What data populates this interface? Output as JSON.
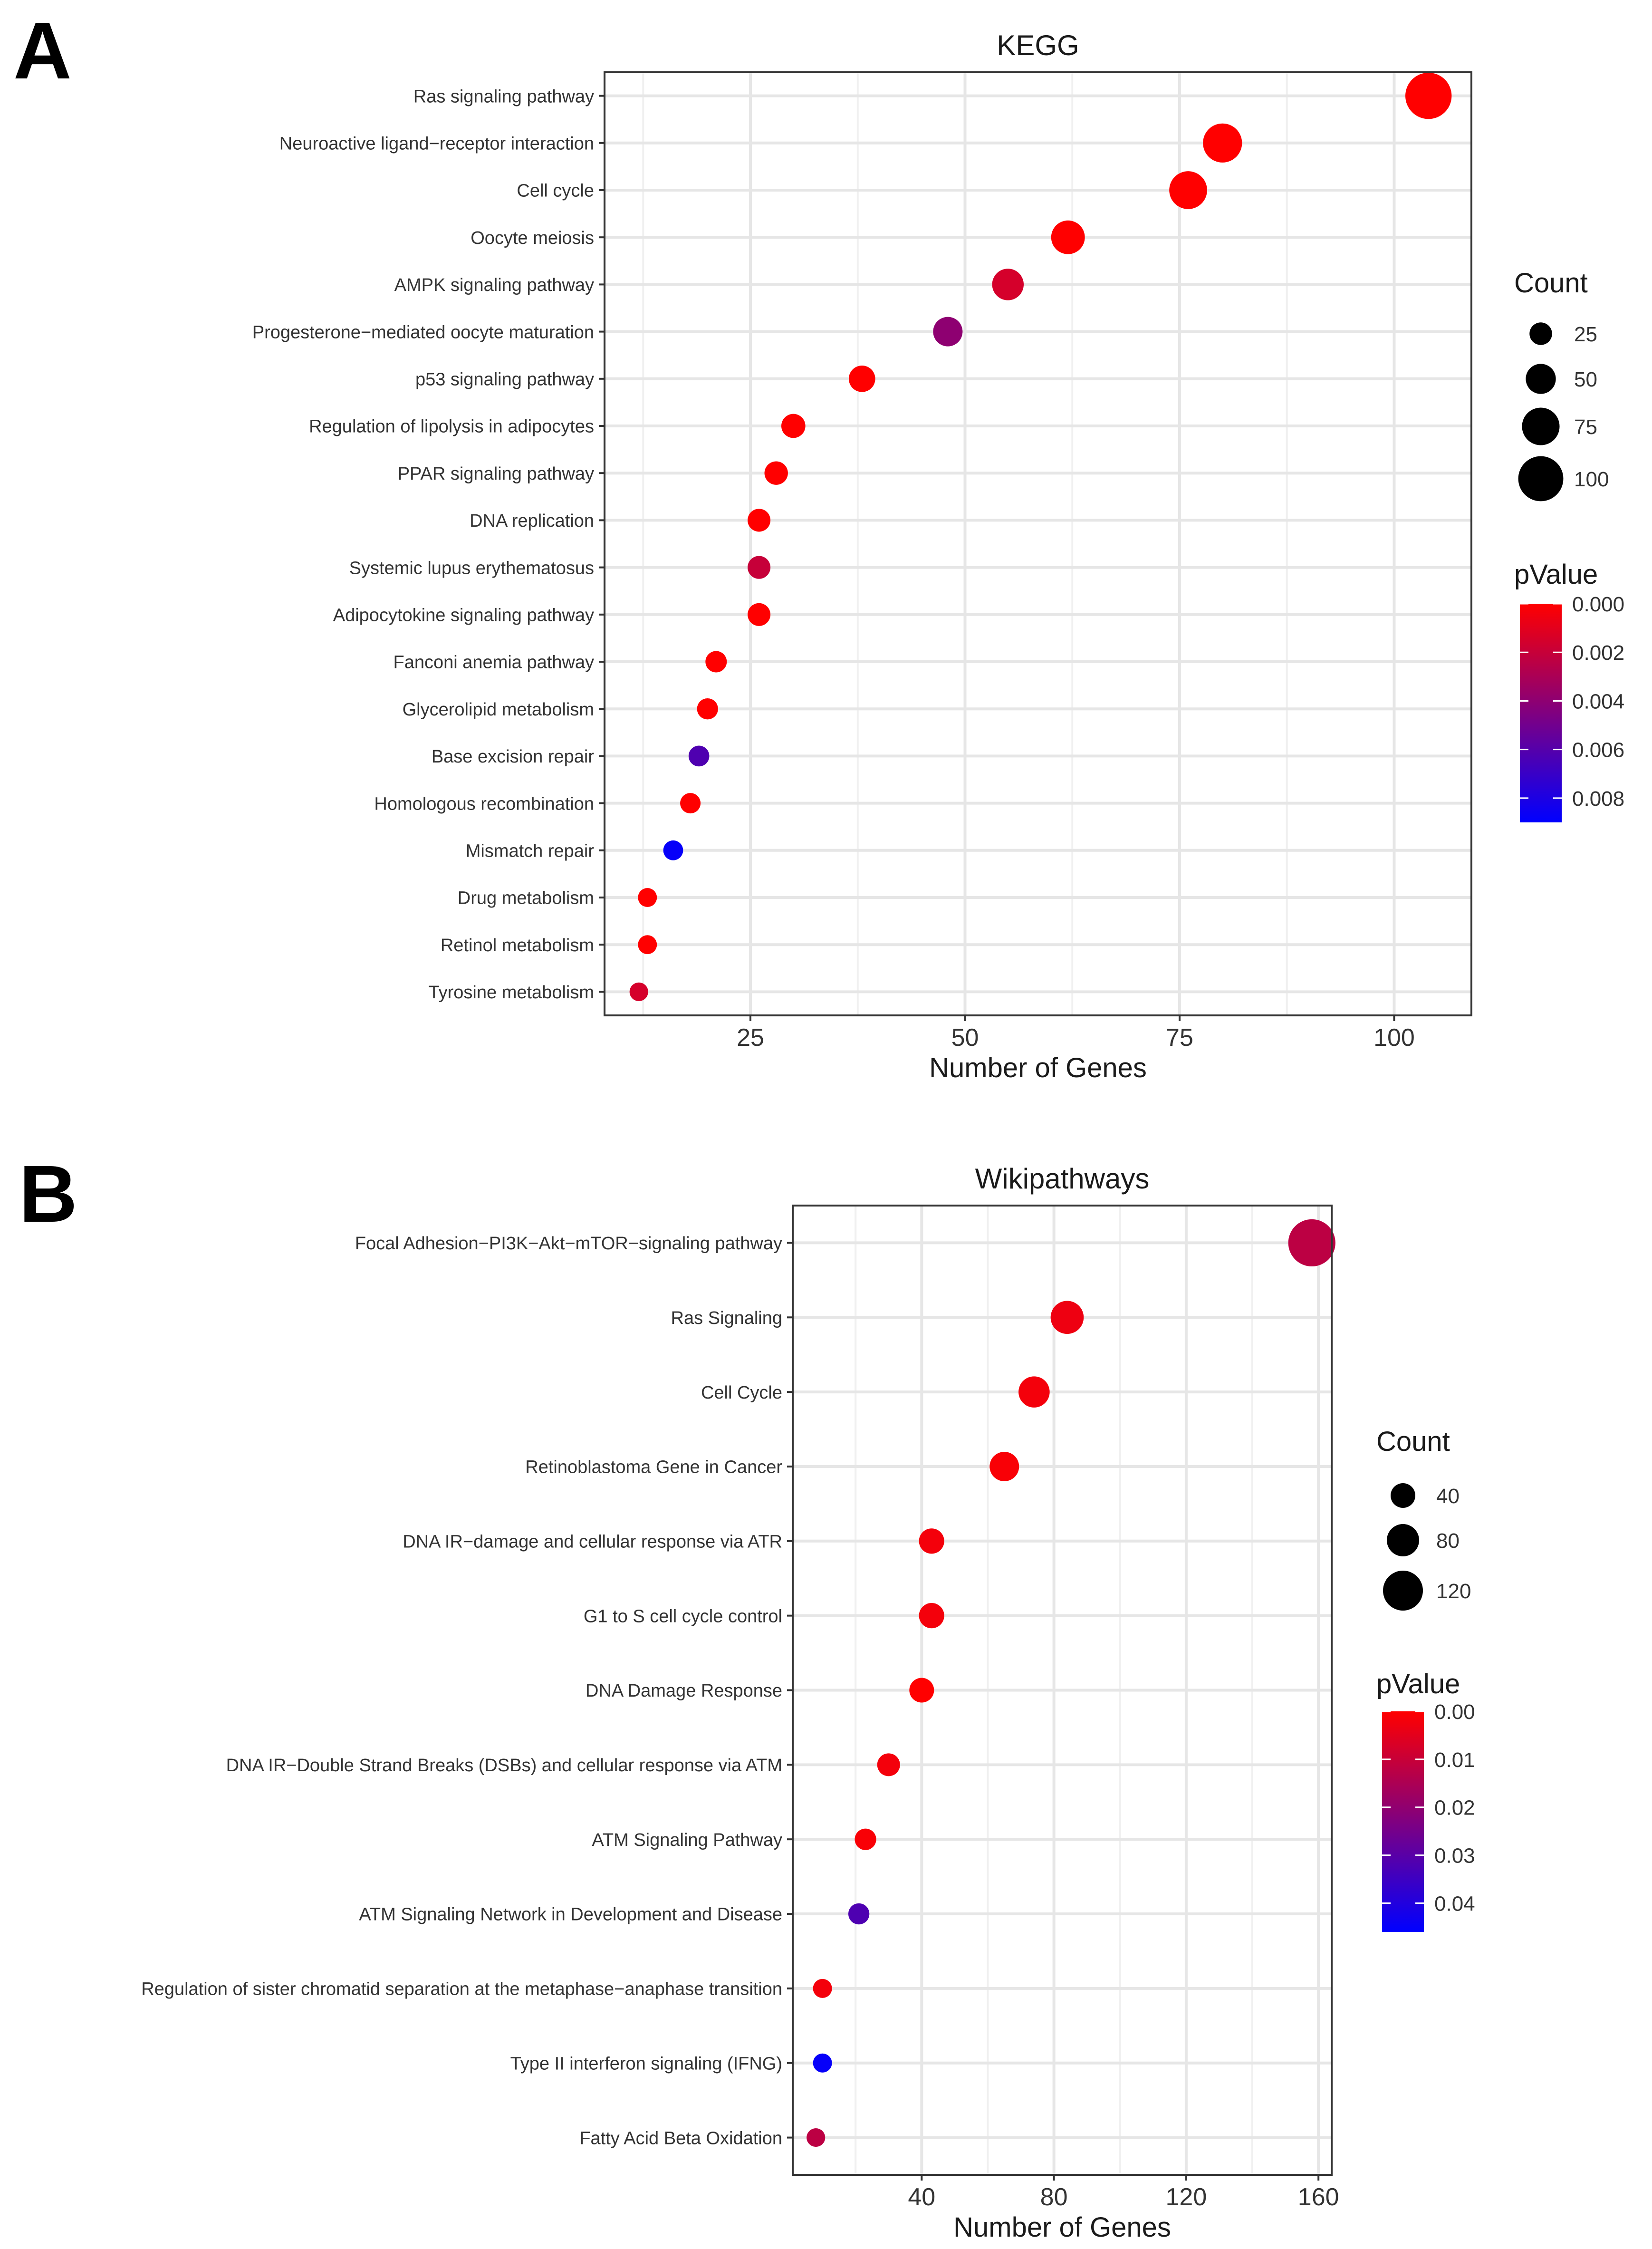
{
  "panels": [
    {
      "label": "A",
      "chart_data": {
        "type": "scatter",
        "title": "KEGG",
        "xlabel": "Number of Genes",
        "ylabel": "",
        "xlim": [
          8,
          109
        ],
        "xticks": [
          25,
          50,
          75,
          100
        ],
        "categories": [
          "Ras signaling pathway",
          "Neuroactive ligand−receptor interaction",
          "Cell cycle",
          "Oocyte meiosis",
          "AMPK signaling pathway",
          "Progesterone−mediated oocyte maturation",
          "p53 signaling pathway",
          "Regulation of lipolysis in adipocytes",
          "PPAR signaling pathway",
          "DNA replication",
          "Systemic lupus erythematosus",
          "Adipocytokine signaling pathway",
          "Fanconi anemia pathway",
          "Glycerolipid metabolism",
          "Base excision repair",
          "Homologous recombination",
          "Mismatch repair",
          "Drug metabolism",
          "Retinol metabolism",
          "Tyrosine metabolism"
        ],
        "counts": [
          104,
          80,
          76,
          62,
          55,
          48,
          38,
          30,
          28,
          26,
          26,
          26,
          21,
          20,
          19,
          18,
          16,
          13,
          13,
          12
        ],
        "pvalues": [
          0.0,
          0.0,
          0.0,
          0.0,
          0.0015,
          0.004,
          0.0,
          0.0,
          0.0,
          0.0,
          0.002,
          0.0,
          0.0,
          0.0,
          0.0062,
          0.0,
          0.0088,
          0.0,
          0.0,
          0.0015
        ],
        "size_legend": {
          "title": "Count",
          "values": [
            25,
            50,
            75,
            100
          ],
          "labels": [
            "25",
            "50",
            "75",
            "100"
          ]
        },
        "color_legend": {
          "title": "pValue",
          "min": 0.0,
          "max": 0.009,
          "ticks": [
            0.0,
            0.002,
            0.004,
            0.006,
            0.008
          ],
          "labels": [
            "0.000",
            "0.002",
            "0.004",
            "0.006",
            "0.008"
          ]
        },
        "colors": {
          "low": "#ff0000",
          "high": "#0000ff"
        },
        "grid": true
      }
    },
    {
      "label": "B",
      "chart_data": {
        "type": "scatter",
        "title": "Wikipathways",
        "xlabel": "Number of Genes",
        "ylabel": "",
        "xlim": [
          1,
          164
        ],
        "xticks": [
          40,
          80,
          120,
          160
        ],
        "categories": [
          "Focal Adhesion−PI3K−Akt−mTOR−signaling pathway",
          "Ras Signaling",
          "Cell Cycle",
          "Retinoblastoma Gene in Cancer",
          "DNA IR−damage and cellular response via ATR",
          "G1 to S cell cycle control",
          "DNA Damage Response",
          "DNA IR−Double Strand Breaks (DSBs) and cellular response via ATM",
          "ATM Signaling Pathway",
          "ATM Signaling Network in Development and Disease",
          "Regulation of sister chromatid separation at the metaphase−anaphase transition",
          "Type II interferon signaling (IFNG)",
          "Fatty Acid Beta Oxidation"
        ],
        "counts": [
          158,
          84,
          74,
          65,
          43,
          43,
          40,
          30,
          23,
          21,
          10,
          10,
          8
        ],
        "pvalues": [
          0.012,
          0.003,
          0.002,
          0.001,
          0.002,
          0.002,
          0.0,
          0.002,
          0.001,
          0.032,
          0.002,
          0.045,
          0.012
        ],
        "size_legend": {
          "title": "Count",
          "values": [
            40,
            80,
            120
          ],
          "labels": [
            "40",
            "80",
            "120"
          ]
        },
        "color_legend": {
          "title": "pValue",
          "min": 0.0,
          "max": 0.046,
          "ticks": [
            0.0,
            0.01,
            0.02,
            0.03,
            0.04
          ],
          "labels": [
            "0.00",
            "0.01",
            "0.02",
            "0.03",
            "0.04"
          ]
        },
        "colors": {
          "low": "#ff0000",
          "high": "#0000ff"
        },
        "grid": true
      }
    }
  ]
}
